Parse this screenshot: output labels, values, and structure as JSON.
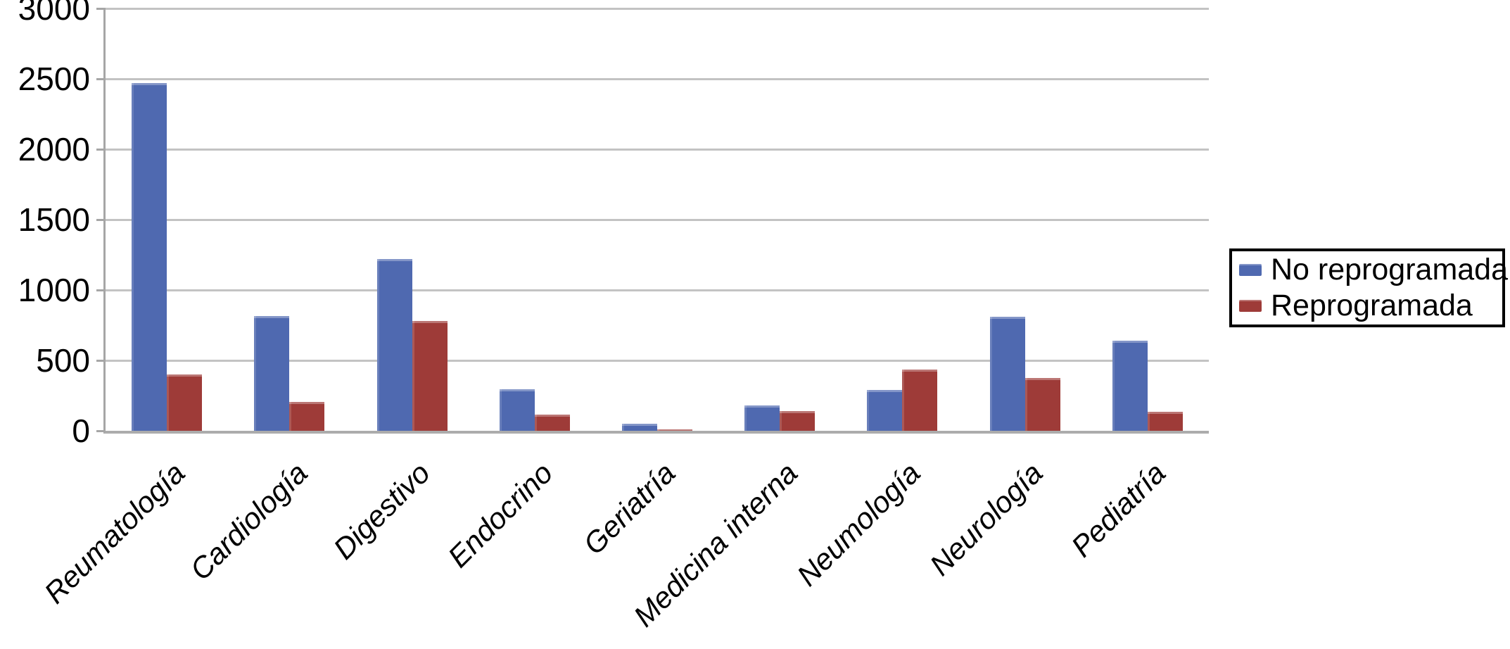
{
  "figure": {
    "background": "#ffffff"
  },
  "chart_data": {
    "type": "bar",
    "title": "",
    "xlabel": "",
    "ylabel": "",
    "categories": [
      "Reumatología",
      "Cardiología",
      "Digestivo",
      "Endocrino",
      "Geriatría",
      "Medicina interna",
      "Neumología",
      "Neurología",
      "Pediatría"
    ],
    "series": [
      {
        "name": "No reprogramada",
        "color": "#4F69B0",
        "values": [
          2470,
          815,
          1220,
          295,
          50,
          180,
          290,
          810,
          640
        ]
      },
      {
        "name": "Reprogramada",
        "color": "#9E3B38",
        "values": [
          400,
          205,
          780,
          115,
          10,
          140,
          435,
          375,
          135
        ]
      }
    ],
    "ylim": [
      0,
      3000
    ],
    "yticks": [
      0,
      500,
      1000,
      1500,
      2000,
      2500,
      3000
    ],
    "grid": "horizontal",
    "gridline_color": "#C3C3C3",
    "axis_color": "#A6A6A6",
    "text_color": "#000000",
    "legend_position": "middle-right",
    "legend_border_color": "#000000",
    "legend_background": "#ffffff"
  }
}
